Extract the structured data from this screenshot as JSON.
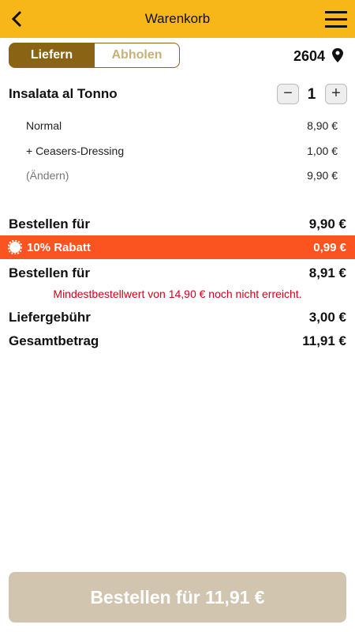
{
  "header": {
    "title": "Warenkorb"
  },
  "tabs": [
    "Liefern",
    "Abholen"
  ],
  "location": "2604",
  "item": {
    "name": "Insalata al Tonno",
    "quantity": "1",
    "lines": [
      {
        "label": "Normal",
        "price": "8,90 €"
      },
      {
        "label": "+ Ceasers-Dressing",
        "price": "1,00 €"
      },
      {
        "label": "(Ändern)",
        "price": "9,90 €"
      }
    ]
  },
  "summary": {
    "subtotal": {
      "label": "Bestellen für",
      "value": "9,90 €"
    },
    "discount": {
      "label": "10% Rabatt",
      "value": "0,99 €"
    },
    "discounted": {
      "label": "Bestellen für",
      "value": "8,91 €"
    },
    "warning": "Mindestbestellwert von 14,90 € noch nicht erreicht.",
    "delivery": {
      "label": "Liefergebühr",
      "value": "3,00 €"
    },
    "total": {
      "label": "Gesamtbetrag",
      "value": "11,91 €"
    }
  },
  "button": "Bestellen für 11,91 €"
}
